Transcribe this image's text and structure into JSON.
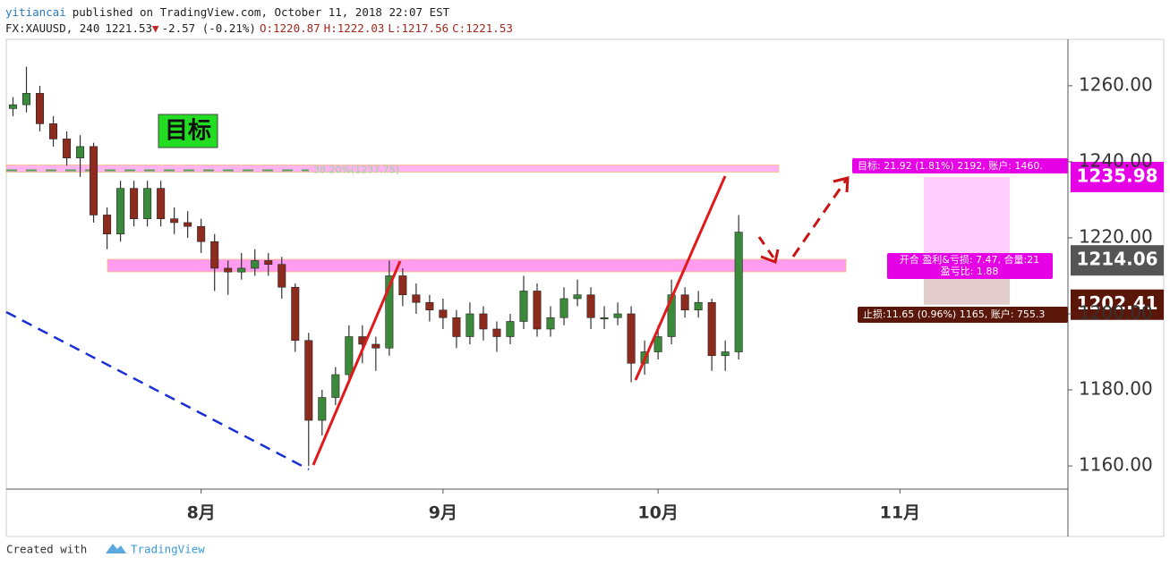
{
  "header": {
    "author": "yitiancai",
    "published": "published on TradingView.com, October 11, 2018 22:07 EST",
    "symbol": "FX:XAUUSD, 240",
    "last": "1221.53",
    "arrow": "▼",
    "change": "-2.57 (-0.21%)",
    "open": "O:1220.87",
    "high": "H:1222.03",
    "low": "L:1217.56",
    "close": "C:1221.53"
  },
  "footer": {
    "created": "Created with",
    "brand": "TradingView"
  },
  "annotations": {
    "target_badge": "目标",
    "fib_label": "38.20%(1237.75)",
    "fib_price": 1237.75,
    "target_label": "目标: 21.92 (1.81%) 2192, 账户: 1460.",
    "entry_label_1": "开合 盈利&亏损: 7.47, 合量:21",
    "entry_label_2": "盈亏比: 1.88",
    "stop_label": "止损:11.65 (0.96%) 1165, 账户: 755.3",
    "target_price": 1235.98,
    "entry_price": 1214.06,
    "stop_price": 1202.41
  },
  "chart_data": {
    "type": "candlestick",
    "categories": [
      null,
      null,
      null,
      null,
      null,
      null,
      null,
      null,
      null,
      null,
      null,
      null,
      null,
      null,
      "8月",
      null,
      null,
      null,
      null,
      null,
      null,
      null,
      null,
      null,
      null,
      null,
      null,
      null,
      null,
      null,
      null,
      null,
      "9月",
      null,
      null,
      null,
      null,
      null,
      null,
      null,
      null,
      null,
      null,
      null,
      null,
      null,
      null,
      null,
      "10月",
      null,
      null,
      null,
      null,
      null,
      null,
      null,
      null,
      null,
      null,
      null,
      null,
      null,
      null,
      null,
      null,
      null,
      "11月",
      null,
      null,
      null,
      null,
      null,
      null,
      null,
      null,
      null,
      null,
      null,
      null
    ],
    "open": [
      1254,
      1255,
      1258,
      1250,
      1246,
      1241,
      1244,
      1226,
      1221,
      1233,
      1225,
      1233,
      1225,
      1224,
      1223,
      1219,
      1212,
      1211,
      1212,
      1214,
      1213,
      1207,
      1193,
      1172,
      1178,
      1184,
      1194,
      1192,
      1191,
      1210,
      1205,
      1203,
      1201,
      1199,
      1194,
      1200,
      1196,
      1194,
      1198,
      1206,
      1196,
      1199,
      1204,
      1205,
      1199,
      1199,
      1200,
      1187,
      1190,
      1194,
      1205,
      1201,
      1203,
      1189,
      1190,
      null,
      null,
      null,
      null,
      null,
      null,
      null,
      null,
      null,
      null,
      null,
      null,
      null,
      null,
      null,
      null,
      null,
      null,
      null,
      null,
      null,
      null,
      null,
      null
    ],
    "high": [
      1257,
      1265,
      1260,
      1252,
      1248,
      1247,
      1245,
      1228,
      1235,
      1235,
      1235,
      1235,
      1228,
      1227,
      1225,
      1221,
      1214,
      1216,
      1217,
      1216,
      1215,
      1208,
      1195,
      1180,
      1186,
      1197,
      1197,
      1194,
      1214,
      1212,
      1208,
      1205,
      1204,
      1201,
      1203,
      1202,
      1198,
      1200,
      1210,
      1208,
      1202,
      1207,
      1209,
      1207,
      1202,
      1203,
      1202,
      1193,
      1197,
      1209,
      1207,
      1206,
      1204,
      1193,
      1226,
      null,
      null,
      null,
      null,
      null,
      null,
      null,
      null,
      null,
      null,
      null,
      null,
      null,
      null,
      null,
      null,
      null,
      null,
      null,
      null,
      null,
      null,
      null,
      null
    ],
    "low": [
      1252,
      1253,
      1248,
      1244,
      1239,
      1236,
      1224,
      1217,
      1219,
      1223,
      1223,
      1223,
      1221,
      1220,
      1216,
      1206,
      1205,
      1209,
      1210,
      1210,
      1204,
      1190,
      1160,
      1168,
      1176,
      1182,
      1187,
      1185,
      1189,
      1202,
      1200,
      1198,
      1196,
      1191,
      1192,
      1193,
      1190,
      1192,
      1196,
      1194,
      1194,
      1197,
      1202,
      1196,
      1196,
      1197,
      1182,
      1184,
      1188,
      1192,
      1199,
      1199,
      1185,
      1185,
      1188,
      null,
      null,
      null,
      null,
      null,
      null,
      null,
      null,
      null,
      null,
      null,
      null,
      null,
      null,
      null,
      null,
      null,
      null,
      null,
      null,
      null,
      null,
      null,
      null
    ],
    "close": [
      1255,
      1258,
      1250,
      1246,
      1241,
      1244,
      1226,
      1221,
      1233,
      1225,
      1233,
      1225,
      1224,
      1223,
      1219,
      1212,
      1211,
      1212,
      1214,
      1213,
      1207,
      1193,
      1172,
      1178,
      1184,
      1194,
      1192,
      1191,
      1210,
      1205,
      1203,
      1201,
      1199,
      1194,
      1200,
      1196,
      1194,
      1198,
      1206,
      1196,
      1199,
      1204,
      1205,
      1199,
      1199,
      1200,
      1187,
      1190,
      1194,
      1205,
      1201,
      1203,
      1189,
      1190,
      1221.5,
      null,
      null,
      null,
      null,
      null,
      null,
      null,
      null,
      null,
      null,
      null,
      null,
      null,
      null,
      null,
      null,
      null,
      null,
      null,
      null,
      null,
      null,
      null,
      null
    ],
    "up_color": "#3b8a3b",
    "down_color": "#8e2b1f",
    "ylim": [
      1153.9,
      1272.2
    ],
    "yticks": [
      {
        "value": 1160,
        "label": "1160.00"
      },
      {
        "value": 1180,
        "label": "1180.00"
      },
      {
        "value": 1200,
        "label": "1200.00"
      },
      {
        "value": 1220,
        "label": "1220.00"
      },
      {
        "value": 1240,
        "label": "1240.00"
      },
      {
        "value": 1260,
        "label": "1260.00"
      }
    ],
    "grid": false
  }
}
